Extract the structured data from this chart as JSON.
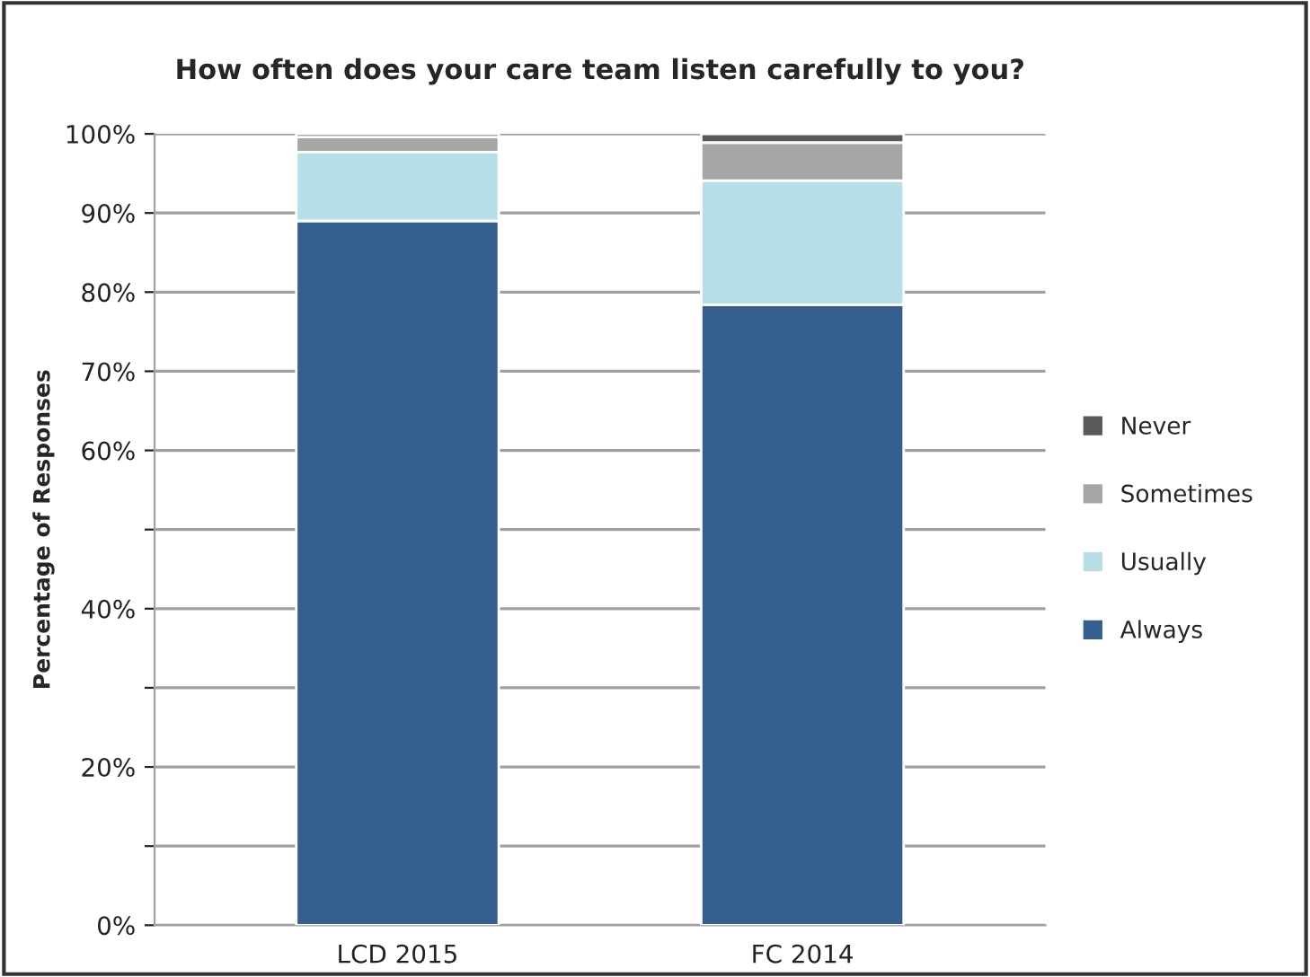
{
  "chart_data": {
    "type": "bar",
    "stacked": true,
    "title": "How often does your care team listen carefully to you?",
    "ylabel": "Percentage of Responses",
    "categories": [
      "LCD 2015",
      "FC 2014"
    ],
    "series": [
      {
        "name": "Always",
        "color": "#345f8f",
        "values": [
          89.0,
          78.4
        ]
      },
      {
        "name": "Usually",
        "color": "#b7dfe8",
        "values": [
          8.7,
          15.7
        ]
      },
      {
        "name": "Sometimes",
        "color": "#a6a6a6",
        "values": [
          1.9,
          4.8
        ]
      },
      {
        "name": "Never",
        "color": "#595959",
        "values": [
          0.4,
          1.1
        ]
      }
    ],
    "ylim": [
      0,
      100
    ],
    "yticks": [
      {
        "value": 0,
        "label": "0%"
      },
      {
        "value": 10,
        "label": null
      },
      {
        "value": 20,
        "label": "20%"
      },
      {
        "value": 30,
        "label": null
      },
      {
        "value": 40,
        "label": "40%"
      },
      {
        "value": 50,
        "label": null
      },
      {
        "value": 60,
        "label": "60%"
      },
      {
        "value": 70,
        "label": "70%"
      },
      {
        "value": 80,
        "label": "80%"
      },
      {
        "value": 90,
        "label": "90%"
      },
      {
        "value": 100,
        "label": "100%"
      }
    ],
    "grid": "y",
    "legend": "right"
  }
}
